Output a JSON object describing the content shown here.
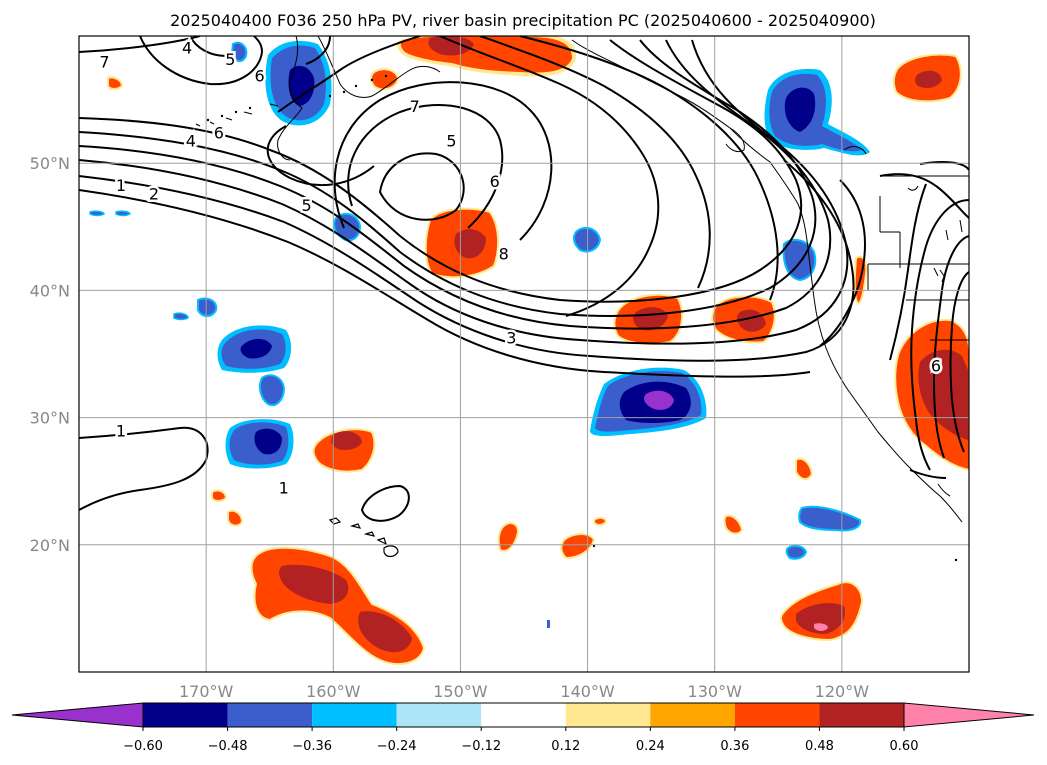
{
  "title": "2025040400 F036 250 hPa PV, river basin precipitation PC (2025040600 - 2025040900)",
  "map": {
    "lon_range": [
      -180,
      -110
    ],
    "lat_range": [
      10,
      60
    ],
    "lon_ticks": [
      {
        "lon": -170,
        "label": "170°W"
      },
      {
        "lon": -160,
        "label": "160°W"
      },
      {
        "lon": -150,
        "label": "150°W"
      },
      {
        "lon": -140,
        "label": "140°W"
      },
      {
        "lon": -130,
        "label": "130°W"
      },
      {
        "lon": -120,
        "label": "120°W"
      }
    ],
    "lat_ticks": [
      {
        "lat": 50,
        "label": "50°N"
      },
      {
        "lat": 40,
        "label": "40°N"
      },
      {
        "lat": 30,
        "label": "30°N"
      },
      {
        "lat": 20,
        "label": "20°N"
      }
    ],
    "contour_labels": [
      {
        "text": "7",
        "lon": -178.0,
        "lat": 58.0
      },
      {
        "text": "4",
        "lon": -171.5,
        "lat": 59.1
      },
      {
        "text": "5",
        "lon": -168.1,
        "lat": 58.2
      },
      {
        "text": "6",
        "lon": -165.8,
        "lat": 56.9
      },
      {
        "text": "6",
        "lon": -169.0,
        "lat": 52.4
      },
      {
        "text": "4",
        "lon": -171.2,
        "lat": 51.8
      },
      {
        "text": "1",
        "lon": -176.7,
        "lat": 48.3
      },
      {
        "text": "2",
        "lon": -174.1,
        "lat": 47.6
      },
      {
        "text": "5",
        "lon": -162.1,
        "lat": 46.7
      },
      {
        "text": "7",
        "lon": -153.6,
        "lat": 54.5
      },
      {
        "text": "5",
        "lon": -150.7,
        "lat": 51.8
      },
      {
        "text": "6",
        "lon": -147.3,
        "lat": 48.6
      },
      {
        "text": "8",
        "lon": -146.6,
        "lat": 42.9
      },
      {
        "text": "3",
        "lon": -146.0,
        "lat": 36.3
      },
      {
        "text": "1",
        "lon": -176.7,
        "lat": 29.0
      },
      {
        "text": "1",
        "lon": -163.9,
        "lat": 24.5
      },
      {
        "text": "6",
        "lon": -112.6,
        "lat": 34.1
      }
    ]
  },
  "colorbar": {
    "labels": [
      "−0.60",
      "−0.48",
      "−0.36",
      "−0.24",
      "−0.12",
      "0.12",
      "0.24",
      "0.36",
      "0.48",
      "0.60"
    ],
    "colors": [
      "#9932cc",
      "#00008b",
      "#3a5fcd",
      "#00bfff",
      "#ade4f8",
      "#ffffff",
      "#ffe890",
      "#ffa500",
      "#ff4500",
      "#b22222",
      "#ff82ab"
    ]
  }
}
